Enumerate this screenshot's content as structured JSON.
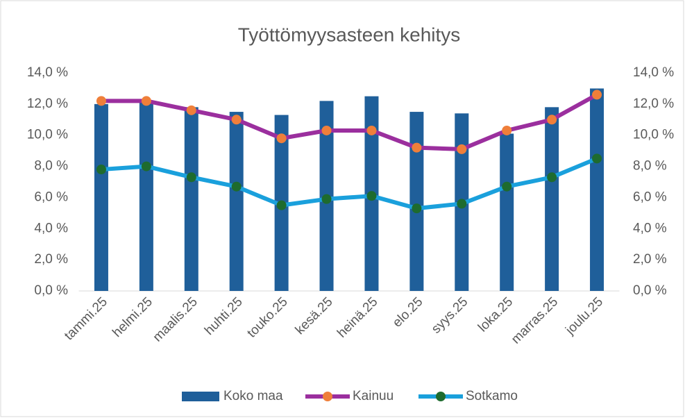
{
  "chart_data": {
    "type": "bar-line",
    "title": "Työttömyysasteen kehitys",
    "categories": [
      "tammi.25",
      "helmi.25",
      "maalis.25",
      "huhti.25",
      "touko.25",
      "kesä.25",
      "heinä.25",
      "elo.25",
      "syys.25",
      "loka.25",
      "marras.25",
      "joulu.25"
    ],
    "series": [
      {
        "name": "Koko maa",
        "type": "bar",
        "color": "#1f5f9a",
        "values": [
          12.0,
          12.1,
          11.8,
          11.5,
          11.3,
          12.2,
          12.5,
          11.5,
          11.4,
          10.1,
          11.8,
          13.0
        ]
      },
      {
        "name": "Kainuu",
        "type": "line",
        "axis": "y2",
        "color": "#9b2f9e",
        "marker_color": "#ef7f3a",
        "values": [
          12.2,
          12.2,
          11.6,
          11.0,
          9.8,
          10.3,
          10.3,
          9.2,
          9.1,
          10.3,
          11.0,
          12.6
        ]
      },
      {
        "name": "Sotkamo",
        "type": "line",
        "axis": "y2",
        "color": "#1aa0dc",
        "marker_color": "#1e6b2e",
        "values": [
          7.8,
          8.0,
          7.3,
          6.7,
          5.5,
          5.9,
          6.1,
          5.3,
          5.6,
          6.7,
          7.3,
          8.5
        ]
      }
    ],
    "ylim": [
      0,
      14
    ],
    "yticks": [
      {
        "value": 0,
        "label": "0,0 %"
      },
      {
        "value": 2,
        "label": "2,0 %"
      },
      {
        "value": 4,
        "label": "4,0 %"
      },
      {
        "value": 6,
        "label": "6,0 %"
      },
      {
        "value": 8,
        "label": "8,0 %"
      },
      {
        "value": 10,
        "label": "10,0 %"
      },
      {
        "value": 12,
        "label": "12,0 %"
      },
      {
        "value": 14,
        "label": "14,0 %"
      }
    ],
    "y2lim": [
      0,
      14
    ],
    "y2ticks": [
      {
        "value": 0,
        "label": "0,0 %"
      },
      {
        "value": 2,
        "label": "2,0 %"
      },
      {
        "value": 4,
        "label": "4,0 %"
      },
      {
        "value": 6,
        "label": "6,0 %"
      },
      {
        "value": 8,
        "label": "8,0 %"
      },
      {
        "value": 10,
        "label": "10,0 %"
      },
      {
        "value": 12,
        "label": "12,0 %"
      },
      {
        "value": 14,
        "label": "14,0 %"
      }
    ],
    "legend": "bottom"
  }
}
